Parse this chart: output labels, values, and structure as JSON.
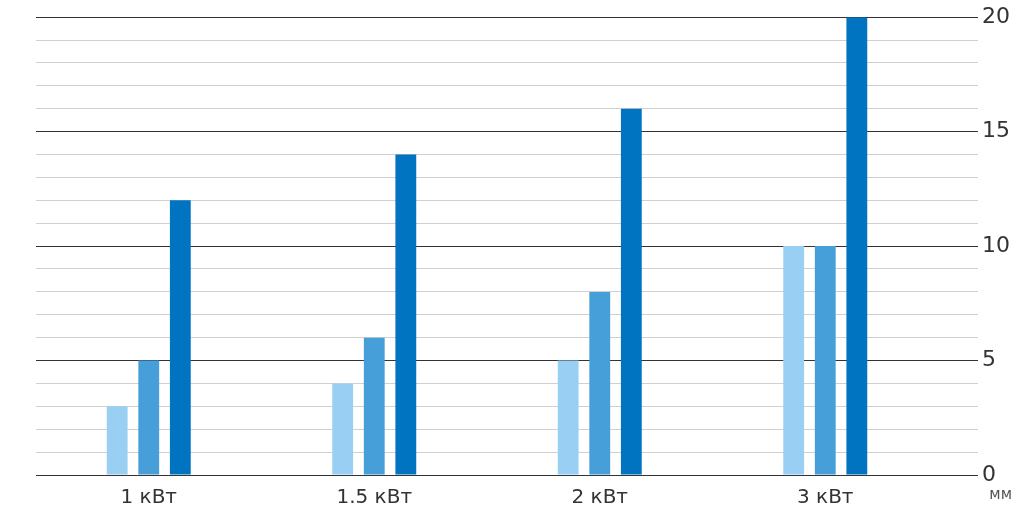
{
  "chart_data": {
    "type": "bar",
    "ylabel": "мм",
    "categories": [
      "1 кВт",
      "1.5 кВт",
      "2 кВт",
      "3 кВт"
    ],
    "series": [
      {
        "color": "#99cff2",
        "values": [
          3,
          4,
          5,
          10
        ]
      },
      {
        "color": "#479fd9",
        "values": [
          5,
          6,
          8,
          10
        ]
      },
      {
        "color": "#0074c1",
        "values": [
          12,
          14,
          16,
          20
        ]
      }
    ],
    "ylim": [
      0,
      20
    ],
    "yticks": [
      0,
      {
        "value": 1,
        "label": null
      },
      {
        "value": 2,
        "label": null
      },
      {
        "value": 3,
        "label": null
      },
      {
        "value": 4,
        "label": null
      },
      5,
      {
        "value": 6,
        "label": null
      },
      {
        "value": 7,
        "label": null
      },
      {
        "value": 8,
        "label": null
      },
      {
        "value": 9,
        "label": null
      },
      10,
      {
        "value": 11,
        "label": null
      },
      {
        "value": 12,
        "label": null
      },
      {
        "value": 13,
        "label": null
      },
      {
        "value": 14,
        "label": null
      },
      15,
      {
        "value": 16,
        "label": null
      },
      {
        "value": 17,
        "label": null
      },
      {
        "value": 18,
        "label": null
      },
      {
        "value": 19,
        "label": null
      },
      20
    ],
    "grid": true
  }
}
